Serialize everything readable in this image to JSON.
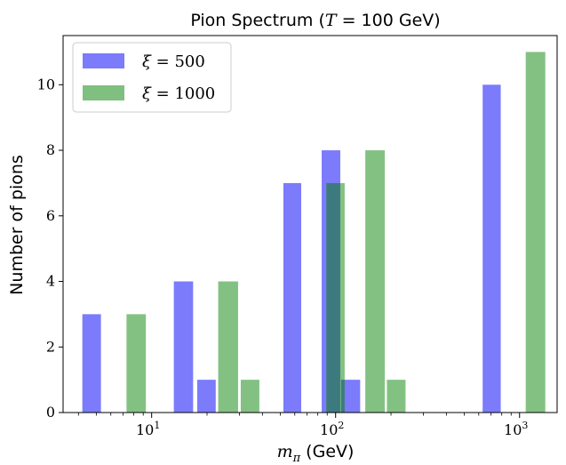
{
  "chart_data": {
    "type": "bar",
    "title": "Pion Spectrum (T = 100 GeV)",
    "xlabel": "m_π (GeV)",
    "ylabel": "Number of pions",
    "xscale": "log",
    "xlim": [
      3.3,
      1600
    ],
    "ylim": [
      0,
      11.5
    ],
    "yticks": [
      0,
      2,
      4,
      6,
      8,
      10
    ],
    "xticks": [
      10,
      100,
      1000
    ],
    "xtick_labels": [
      "10^1",
      "10^2",
      "10^3"
    ],
    "legend_position": "upper-left",
    "series": [
      {
        "name": "ξ = 500",
        "color": "#7b7bfb",
        "bars": [
          {
            "x_low": 4.2,
            "x_high": 5.3,
            "value": 3
          },
          {
            "x_low": 13.2,
            "x_high": 16.8,
            "value": 4
          },
          {
            "x_low": 17.7,
            "x_high": 22.3,
            "value": 1
          },
          {
            "x_low": 52,
            "x_high": 65,
            "value": 7
          },
          {
            "x_low": 84,
            "x_high": 106,
            "value": 8
          },
          {
            "x_low": 107,
            "x_high": 136,
            "value": 1
          },
          {
            "x_low": 630,
            "x_high": 790,
            "value": 10
          }
        ]
      },
      {
        "name": "ξ = 1000",
        "color": "#7fbf7f",
        "bars": [
          {
            "x_low": 7.3,
            "x_high": 9.3,
            "value": 3
          },
          {
            "x_low": 23,
            "x_high": 29.5,
            "value": 4
          },
          {
            "x_low": 30.5,
            "x_high": 38.5,
            "value": 1
          },
          {
            "x_low": 89,
            "x_high": 112,
            "value": 7
          },
          {
            "x_low": 145,
            "x_high": 185,
            "value": 8
          },
          {
            "x_low": 190,
            "x_high": 240,
            "value": 1
          },
          {
            "x_low": 1080,
            "x_high": 1380,
            "value": 11
          }
        ]
      }
    ]
  }
}
